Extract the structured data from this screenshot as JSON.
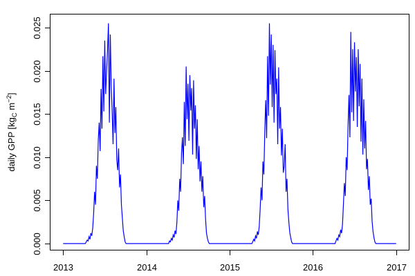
{
  "figure": {
    "background": "#ffffff",
    "ylabel": {
      "pre": "daily GPP [kg",
      "sub": "C",
      "mid": " m",
      "sup": "−2",
      "post": "]"
    }
  },
  "chart_data": {
    "type": "line",
    "title": "",
    "xlabel": "",
    "ylabel": "daily GPP [kg_C m^-2]",
    "line_color": "#0000ff",
    "axis_color": "#000000",
    "grid": false,
    "legend": "none",
    "x_tick_values": [
      2013,
      2014,
      2015,
      2016,
      2017
    ],
    "x_tick_labels": [
      "2013",
      "2014",
      "2015",
      "2016",
      "2017"
    ],
    "y_tick_values": [
      0,
      0.005,
      0.01,
      0.015,
      0.02,
      0.025
    ],
    "y_tick_labels": [
      "0.000",
      "0.005",
      "0.010",
      "0.015",
      "0.020",
      "0.025"
    ],
    "xlim": [
      2012.84,
      2017.16
    ],
    "ylim": [
      -0.0008,
      0.0266
    ],
    "x_start": 2013.0,
    "x_end": 2017.0,
    "values": [
      0,
      0,
      0,
      0,
      0,
      0,
      0,
      0,
      0,
      0,
      0,
      0,
      0,
      0,
      0,
      0,
      0,
      0,
      0,
      0,
      0,
      0,
      0,
      0,
      0,
      0.0002,
      0.0004,
      0.0003,
      0.0008,
      0.0005,
      0.0012,
      0.0009,
      0.0018,
      0.0035,
      0.006,
      0.0045,
      0.009,
      0.0075,
      0.012,
      0.014,
      0.0107,
      0.0179,
      0.0133,
      0.0217,
      0.0153,
      0.0235,
      0.0173,
      0.0199,
      0.0224,
      0.0255,
      0.014,
      0.0242,
      0.0184,
      0.0153,
      0.0115,
      0.0191,
      0.0128,
      0.0158,
      0.0097,
      0.0085,
      0.011,
      0.0065,
      0.008,
      0.0045,
      0.003,
      0.0015,
      0.0008,
      0.0002,
      0,
      0,
      0,
      0,
      0,
      0,
      0,
      0,
      0,
      0,
      0,
      0,
      0,
      0,
      0,
      0,
      0,
      0,
      0,
      0,
      0,
      0,
      0,
      0,
      0,
      0,
      0,
      0,
      0,
      0,
      0,
      0,
      0,
      0,
      0,
      0,
      0,
      0,
      0,
      0,
      0,
      0,
      0,
      0,
      0,
      0,
      0,
      0.0003,
      0.0002,
      0.0006,
      0.0004,
      0.001,
      0.0007,
      0.0015,
      0.0011,
      0.0025,
      0.005,
      0.0038,
      0.0075,
      0.006,
      0.0105,
      0.0123,
      0.0092,
      0.0164,
      0.0113,
      0.0205,
      0.0144,
      0.0185,
      0.0119,
      0.0195,
      0.0154,
      0.018,
      0.0103,
      0.0189,
      0.0133,
      0.016,
      0.0098,
      0.0144,
      0.0086,
      0.0113,
      0.0072,
      0.0095,
      0.006,
      0.0078,
      0.0042,
      0.0055,
      0.0028,
      0.0012,
      0.0006,
      0.0002,
      0,
      0,
      0,
      0,
      0,
      0,
      0,
      0,
      0,
      0,
      0,
      0,
      0,
      0,
      0,
      0,
      0,
      0,
      0,
      0,
      0,
      0,
      0,
      0,
      0,
      0,
      0,
      0,
      0,
      0,
      0,
      0,
      0,
      0,
      0,
      0,
      0,
      0,
      0,
      0,
      0,
      0,
      0,
      0,
      0,
      0,
      0,
      0.0002,
      0.0005,
      0.0003,
      0.0009,
      0.0006,
      0.0014,
      0.001,
      0.002,
      0.004,
      0.0065,
      0.005,
      0.0095,
      0.008,
      0.013,
      0.0166,
      0.0122,
      0.0217,
      0.0148,
      0.0255,
      0.0184,
      0.0242,
      0.0158,
      0.023,
      0.014,
      0.0224,
      0.0173,
      0.0191,
      0.0115,
      0.0204,
      0.0133,
      0.0158,
      0.0102,
      0.0133,
      0.0082,
      0.009,
      0.0115,
      0.006,
      0.0075,
      0.004,
      0.0025,
      0.0013,
      0.0007,
      0.0002,
      0,
      0,
      0,
      0,
      0,
      0,
      0,
      0,
      0,
      0,
      0,
      0,
      0,
      0,
      0,
      0,
      0,
      0,
      0,
      0,
      0,
      0,
      0,
      0,
      0,
      0,
      0,
      0,
      0,
      0,
      0,
      0,
      0,
      0,
      0,
      0,
      0,
      0,
      0,
      0,
      0,
      0,
      0,
      0,
      0,
      0,
      0,
      0.0003,
      0.0006,
      0.0004,
      0.001,
      0.0008,
      0.0016,
      0.0012,
      0.0022,
      0.0045,
      0.007,
      0.0055,
      0.01,
      0.0085,
      0.0135,
      0.0172,
      0.0123,
      0.0245,
      0.0152,
      0.0225,
      0.0142,
      0.0233,
      0.0176,
      0.0216,
      0.0135,
      0.0225,
      0.0159,
      0.0208,
      0.0118,
      0.0191,
      0.0103,
      0.0167,
      0.011,
      0.0142,
      0.0086,
      0.0098,
      0.0062,
      0.0078,
      0.0045,
      0.0052,
      0.0026,
      0.0014,
      0.0007,
      0.0002,
      0,
      0,
      0,
      0,
      0,
      0,
      0,
      0,
      0,
      0,
      0,
      0,
      0,
      0,
      0,
      0,
      0,
      0,
      0,
      0,
      0,
      0,
      0
    ]
  }
}
